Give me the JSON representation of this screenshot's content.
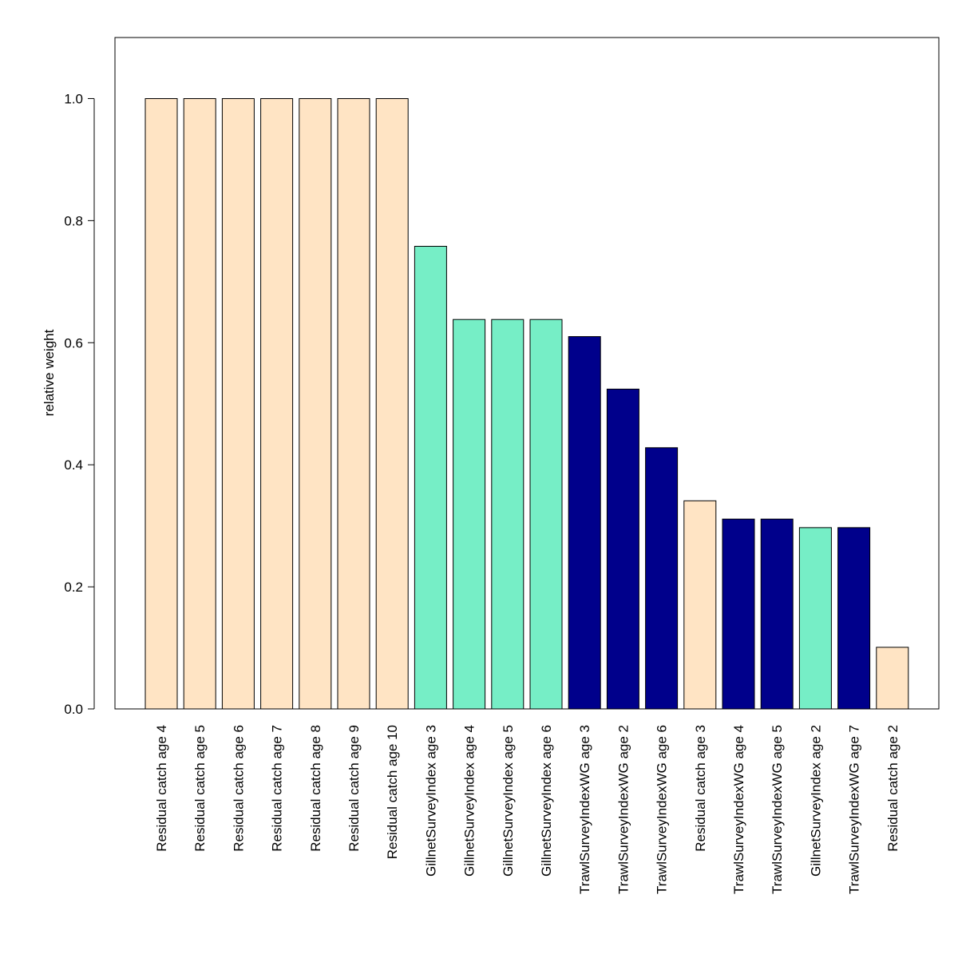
{
  "chart_data": {
    "type": "bar",
    "title": "",
    "xlabel": "",
    "ylabel": "relative weight",
    "ylim": [
      0,
      1.1
    ],
    "yticks": [
      "0.0",
      "0.2",
      "0.4",
      "0.6",
      "0.8",
      "1.0"
    ],
    "grid": false,
    "legend": "none",
    "colors": {
      "Residual catch": "#FFE4C4",
      "GillnetSurveyIndex": "#76EEC6",
      "TrawlSurveyIndexWG": "#00008B"
    },
    "categories": [
      "Residual catch age 4",
      "Residual catch age 5",
      "Residual catch age 6",
      "Residual catch age 7",
      "Residual catch age 8",
      "Residual catch age 9",
      "Residual catch age 10",
      "GillnetSurveyIndex age 3",
      "GillnetSurveyIndex age 4",
      "GillnetSurveyIndex age 5",
      "GillnetSurveyIndex age 6",
      "TrawlSurveyIndexWG age 3",
      "TrawlSurveyIndexWG age 2",
      "TrawlSurveyIndexWG age 6",
      "Residual catch age 3",
      "TrawlSurveyIndexWG age 4",
      "TrawlSurveyIndexWG age 5",
      "GillnetSurveyIndex age 2",
      "TrawlSurveyIndexWG age 7",
      "Residual catch age 2"
    ],
    "groups": [
      "Residual catch",
      "Residual catch",
      "Residual catch",
      "Residual catch",
      "Residual catch",
      "Residual catch",
      "Residual catch",
      "GillnetSurveyIndex",
      "GillnetSurveyIndex",
      "GillnetSurveyIndex",
      "GillnetSurveyIndex",
      "TrawlSurveyIndexWG",
      "TrawlSurveyIndexWG",
      "TrawlSurveyIndexWG",
      "Residual catch",
      "TrawlSurveyIndexWG",
      "TrawlSurveyIndexWG",
      "GillnetSurveyIndex",
      "TrawlSurveyIndexWG",
      "Residual catch"
    ],
    "values": [
      1.0,
      1.0,
      1.0,
      1.0,
      1.0,
      1.0,
      1.0,
      0.758,
      0.638,
      0.638,
      0.638,
      0.61,
      0.524,
      0.428,
      0.341,
      0.311,
      0.311,
      0.297,
      0.297,
      0.101
    ]
  }
}
